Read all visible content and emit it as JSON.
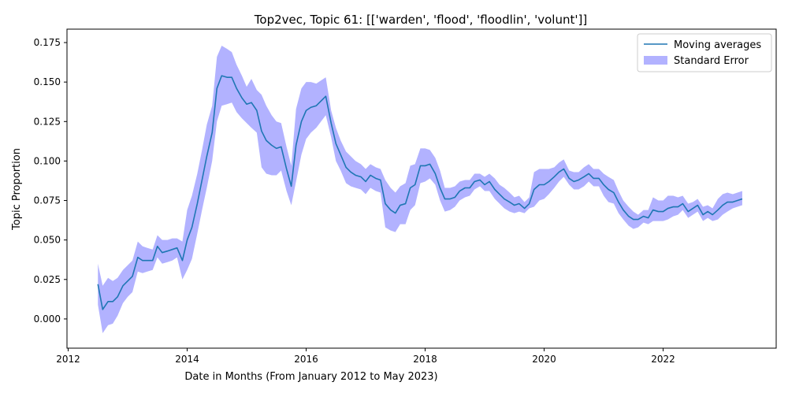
{
  "chart_data": {
    "type": "line",
    "title": "Top2vec, Topic 61: [['warden', 'flood', 'floodlin', 'volunt']]",
    "xlabel": "Date in Months (From January 2012 to May 2023)",
    "ylabel": "Topic Proportion",
    "xlim": [
      2011.98,
      2023.9
    ],
    "ylim": [
      -0.0185,
      0.1835
    ],
    "x_ticks": [
      2012,
      2014,
      2016,
      2018,
      2020,
      2022
    ],
    "y_ticks": [
      0.0,
      0.025,
      0.05,
      0.075,
      0.1,
      0.125,
      0.15,
      0.175
    ],
    "y_tick_labels": [
      "0.000",
      "0.025",
      "0.050",
      "0.075",
      "0.100",
      "0.125",
      "0.150",
      "0.175"
    ],
    "grid": false,
    "legend_position": "top-right",
    "legend": [
      {
        "label": "Moving averages",
        "kind": "line",
        "color": "#1f77b4"
      },
      {
        "label": "Standard Error",
        "kind": "band",
        "color": "#0000ff"
      }
    ],
    "series": [
      {
        "name": "Moving averages",
        "kind": "line",
        "color": "#1f77b4",
        "x": [
          2012.5,
          2012.58,
          2012.67,
          2012.75,
          2012.83,
          2012.92,
          2013.0,
          2013.08,
          2013.17,
          2013.25,
          2013.33,
          2013.42,
          2013.5,
          2013.58,
          2013.67,
          2013.75,
          2013.83,
          2013.92,
          2014.0,
          2014.08,
          2014.17,
          2014.25,
          2014.33,
          2014.42,
          2014.5,
          2014.58,
          2014.67,
          2014.75,
          2014.83,
          2014.92,
          2015.0,
          2015.08,
          2015.17,
          2015.25,
          2015.33,
          2015.42,
          2015.5,
          2015.58,
          2015.67,
          2015.75,
          2015.83,
          2015.92,
          2016.0,
          2016.08,
          2016.17,
          2016.25,
          2016.33,
          2016.42,
          2016.5,
          2016.58,
          2016.67,
          2016.75,
          2016.83,
          2016.92,
          2017.0,
          2017.08,
          2017.17,
          2017.25,
          2017.33,
          2017.42,
          2017.5,
          2017.58,
          2017.67,
          2017.75,
          2017.83,
          2017.92,
          2018.0,
          2018.08,
          2018.17,
          2018.25,
          2018.33,
          2018.42,
          2018.5,
          2018.58,
          2018.67,
          2018.75,
          2018.83,
          2018.92,
          2019.0,
          2019.08,
          2019.17,
          2019.25,
          2019.33,
          2019.42,
          2019.5,
          2019.58,
          2019.67,
          2019.75,
          2019.83,
          2019.92,
          2020.0,
          2020.08,
          2020.17,
          2020.25,
          2020.33,
          2020.42,
          2020.5,
          2020.58,
          2020.67,
          2020.75,
          2020.83,
          2020.92,
          2021.0,
          2021.08,
          2021.17,
          2021.25,
          2021.33,
          2021.42,
          2021.5,
          2021.58,
          2021.67,
          2021.75,
          2021.83,
          2021.92,
          2022.0,
          2022.08,
          2022.17,
          2022.25,
          2022.33,
          2022.42,
          2022.5,
          2022.58,
          2022.67,
          2022.75,
          2022.83,
          2022.92,
          2023.0,
          2023.08,
          2023.17,
          2023.25,
          2023.33
        ],
        "y": [
          0.022,
          0.006,
          0.011,
          0.011,
          0.014,
          0.021,
          0.024,
          0.027,
          0.039,
          0.037,
          0.037,
          0.037,
          0.046,
          0.042,
          0.043,
          0.044,
          0.045,
          0.037,
          0.05,
          0.058,
          0.073,
          0.088,
          0.103,
          0.118,
          0.146,
          0.154,
          0.153,
          0.153,
          0.146,
          0.14,
          0.136,
          0.137,
          0.132,
          0.119,
          0.113,
          0.11,
          0.108,
          0.109,
          0.095,
          0.084,
          0.11,
          0.125,
          0.132,
          0.134,
          0.135,
          0.138,
          0.141,
          0.124,
          0.111,
          0.104,
          0.096,
          0.093,
          0.091,
          0.09,
          0.087,
          0.091,
          0.089,
          0.088,
          0.073,
          0.069,
          0.067,
          0.072,
          0.073,
          0.083,
          0.085,
          0.097,
          0.097,
          0.098,
          0.092,
          0.083,
          0.076,
          0.076,
          0.077,
          0.081,
          0.083,
          0.083,
          0.087,
          0.088,
          0.085,
          0.087,
          0.082,
          0.079,
          0.076,
          0.074,
          0.072,
          0.073,
          0.07,
          0.073,
          0.082,
          0.085,
          0.085,
          0.087,
          0.09,
          0.093,
          0.095,
          0.089,
          0.087,
          0.088,
          0.09,
          0.092,
          0.089,
          0.089,
          0.085,
          0.082,
          0.08,
          0.074,
          0.069,
          0.065,
          0.063,
          0.063,
          0.065,
          0.064,
          0.069,
          0.068,
          0.068,
          0.07,
          0.071,
          0.071,
          0.073,
          0.068,
          0.07,
          0.072,
          0.066,
          0.068,
          0.066,
          0.069,
          0.072,
          0.074,
          0.074,
          0.075,
          0.076
        ]
      },
      {
        "name": "Standard Error",
        "kind": "band",
        "color": "#0000ff",
        "x": [
          2012.5,
          2012.58,
          2012.67,
          2012.75,
          2012.83,
          2012.92,
          2013.0,
          2013.08,
          2013.17,
          2013.25,
          2013.33,
          2013.42,
          2013.5,
          2013.58,
          2013.67,
          2013.75,
          2013.83,
          2013.92,
          2014.0,
          2014.08,
          2014.17,
          2014.25,
          2014.33,
          2014.42,
          2014.5,
          2014.58,
          2014.67,
          2014.75,
          2014.83,
          2014.92,
          2015.0,
          2015.08,
          2015.17,
          2015.25,
          2015.33,
          2015.42,
          2015.5,
          2015.58,
          2015.67,
          2015.75,
          2015.83,
          2015.92,
          2016.0,
          2016.08,
          2016.17,
          2016.25,
          2016.33,
          2016.42,
          2016.5,
          2016.58,
          2016.67,
          2016.75,
          2016.83,
          2016.92,
          2017.0,
          2017.08,
          2017.17,
          2017.25,
          2017.33,
          2017.42,
          2017.5,
          2017.58,
          2017.67,
          2017.75,
          2017.83,
          2017.92,
          2018.0,
          2018.08,
          2018.17,
          2018.25,
          2018.33,
          2018.42,
          2018.5,
          2018.58,
          2018.67,
          2018.75,
          2018.83,
          2018.92,
          2019.0,
          2019.08,
          2019.17,
          2019.25,
          2019.33,
          2019.42,
          2019.5,
          2019.58,
          2019.67,
          2019.75,
          2019.83,
          2019.92,
          2020.0,
          2020.08,
          2020.17,
          2020.25,
          2020.33,
          2020.42,
          2020.5,
          2020.58,
          2020.67,
          2020.75,
          2020.83,
          2020.92,
          2021.0,
          2021.08,
          2021.17,
          2021.25,
          2021.33,
          2021.42,
          2021.5,
          2021.58,
          2021.67,
          2021.75,
          2021.83,
          2021.92,
          2022.0,
          2022.08,
          2022.17,
          2022.25,
          2022.33,
          2022.42,
          2022.5,
          2022.58,
          2022.67,
          2022.75,
          2022.83,
          2022.92,
          2023.0,
          2023.08,
          2023.17,
          2023.25,
          2023.33
        ],
        "upper": [
          0.035,
          0.021,
          0.026,
          0.024,
          0.026,
          0.031,
          0.034,
          0.037,
          0.049,
          0.046,
          0.045,
          0.044,
          0.053,
          0.05,
          0.05,
          0.051,
          0.051,
          0.049,
          0.069,
          0.078,
          0.092,
          0.107,
          0.123,
          0.135,
          0.166,
          0.173,
          0.171,
          0.169,
          0.161,
          0.154,
          0.147,
          0.152,
          0.145,
          0.142,
          0.135,
          0.129,
          0.125,
          0.124,
          0.109,
          0.097,
          0.133,
          0.146,
          0.15,
          0.15,
          0.149,
          0.151,
          0.153,
          0.132,
          0.121,
          0.113,
          0.106,
          0.103,
          0.1,
          0.098,
          0.095,
          0.098,
          0.096,
          0.095,
          0.088,
          0.083,
          0.08,
          0.084,
          0.086,
          0.097,
          0.098,
          0.108,
          0.108,
          0.107,
          0.102,
          0.094,
          0.083,
          0.083,
          0.084,
          0.087,
          0.088,
          0.088,
          0.092,
          0.092,
          0.09,
          0.092,
          0.089,
          0.085,
          0.083,
          0.08,
          0.077,
          0.078,
          0.074,
          0.077,
          0.093,
          0.095,
          0.095,
          0.095,
          0.096,
          0.099,
          0.101,
          0.094,
          0.093,
          0.093,
          0.096,
          0.098,
          0.095,
          0.095,
          0.092,
          0.09,
          0.088,
          0.081,
          0.075,
          0.071,
          0.068,
          0.066,
          0.069,
          0.069,
          0.077,
          0.075,
          0.075,
          0.078,
          0.078,
          0.077,
          0.078,
          0.073,
          0.074,
          0.076,
          0.071,
          0.072,
          0.07,
          0.076,
          0.079,
          0.08,
          0.079,
          0.08,
          0.081
        ],
        "lower": [
          0.009,
          -0.009,
          -0.004,
          -0.003,
          0.002,
          0.01,
          0.014,
          0.017,
          0.03,
          0.029,
          0.03,
          0.031,
          0.039,
          0.035,
          0.036,
          0.037,
          0.039,
          0.025,
          0.031,
          0.038,
          0.054,
          0.069,
          0.083,
          0.1,
          0.125,
          0.135,
          0.136,
          0.137,
          0.131,
          0.127,
          0.124,
          0.121,
          0.118,
          0.096,
          0.092,
          0.091,
          0.091,
          0.094,
          0.081,
          0.072,
          0.087,
          0.104,
          0.114,
          0.118,
          0.121,
          0.125,
          0.129,
          0.115,
          0.1,
          0.094,
          0.086,
          0.084,
          0.083,
          0.082,
          0.079,
          0.083,
          0.081,
          0.08,
          0.058,
          0.056,
          0.055,
          0.06,
          0.06,
          0.069,
          0.072,
          0.086,
          0.087,
          0.089,
          0.085,
          0.075,
          0.068,
          0.069,
          0.071,
          0.075,
          0.077,
          0.078,
          0.082,
          0.084,
          0.081,
          0.081,
          0.076,
          0.073,
          0.07,
          0.068,
          0.067,
          0.068,
          0.067,
          0.07,
          0.071,
          0.075,
          0.076,
          0.079,
          0.083,
          0.087,
          0.09,
          0.085,
          0.082,
          0.082,
          0.084,
          0.087,
          0.084,
          0.084,
          0.078,
          0.074,
          0.073,
          0.067,
          0.063,
          0.059,
          0.057,
          0.058,
          0.061,
          0.06,
          0.062,
          0.062,
          0.062,
          0.063,
          0.065,
          0.066,
          0.069,
          0.064,
          0.066,
          0.068,
          0.062,
          0.064,
          0.062,
          0.063,
          0.066,
          0.068,
          0.07,
          0.071,
          0.072
        ]
      }
    ]
  }
}
